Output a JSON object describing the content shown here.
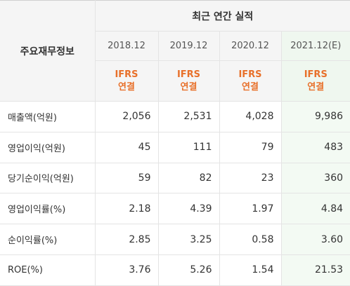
{
  "table": {
    "corner_label": "주요재무정보",
    "period_header": "최근 연간 실적",
    "years": [
      "2018.12",
      "2019.12",
      "2020.12",
      "2021.12(E)"
    ],
    "standard": {
      "line1": "IFRS",
      "line2": "연결"
    },
    "rows": [
      {
        "label": "매출액(억원)",
        "values": [
          "2,056",
          "2,531",
          "4,028",
          "9,986"
        ]
      },
      {
        "label": "영업이익(억원)",
        "values": [
          "45",
          "111",
          "79",
          "483"
        ]
      },
      {
        "label": "당기순이익(억원)",
        "values": [
          "59",
          "82",
          "23",
          "360"
        ]
      },
      {
        "label": "영업이익률(%)",
        "values": [
          "2.18",
          "4.39",
          "1.97",
          "4.84"
        ]
      },
      {
        "label": "순이익률(%)",
        "values": [
          "2.85",
          "3.25",
          "0.58",
          "3.60"
        ]
      },
      {
        "label": "ROE(%)",
        "values": [
          "3.76",
          "5.26",
          "1.54",
          "21.53"
        ]
      }
    ],
    "colors": {
      "accent_orange": "#e8702a",
      "header_bg": "#f5f5f5",
      "estimate_bg": "#f3faf3",
      "border": "#e4e4e4"
    }
  }
}
